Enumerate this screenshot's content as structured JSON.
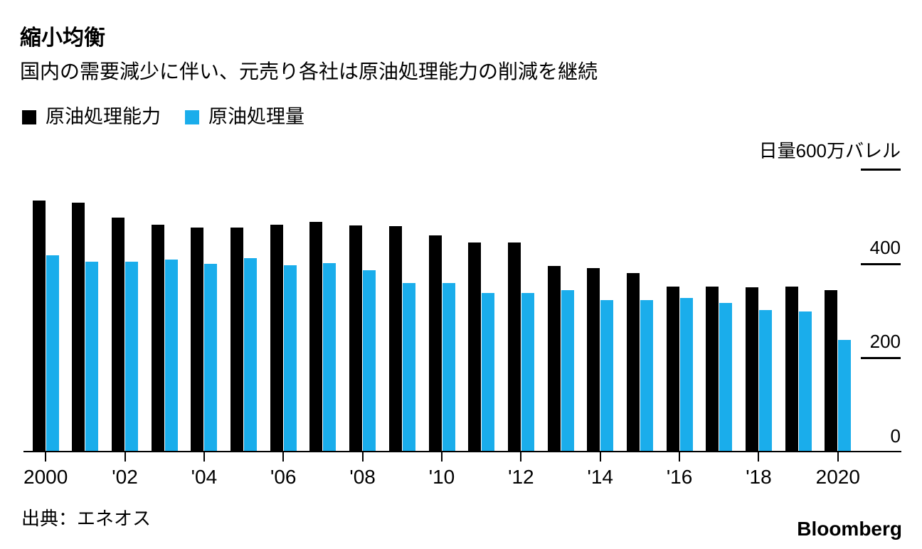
{
  "header": {
    "title": "縮小均衡",
    "subtitle": "国内の需要減少に伴い、元売り各社は原油処理能力の削減を継続"
  },
  "legend": [
    {
      "label": "原油処理能力",
      "color": "#000000"
    },
    {
      "label": "原油処理量",
      "color": "#1AADEB"
    }
  ],
  "footer": {
    "source": "出典：エネオス",
    "brand": "Bloomberg"
  },
  "chart_data": {
    "type": "bar",
    "title": "縮小均衡",
    "subtitle": "国内の需要減少に伴い、元売り各社は原油処理能力の削減を継続",
    "unit_label": "日量600万バレル",
    "unit_note": "values in 万バレル/日 (10,000 barrels per day)",
    "categories": [
      2000,
      2001,
      2002,
      2003,
      2004,
      2005,
      2006,
      2007,
      2008,
      2009,
      2010,
      2011,
      2012,
      2013,
      2014,
      2015,
      2016,
      2017,
      2018,
      2019,
      2020
    ],
    "series": [
      {
        "name": "原油処理能力",
        "color": "#000000",
        "values": [
          533,
          529,
          498,
          482,
          476,
          476,
          482,
          488,
          481,
          479,
          460,
          445,
          445,
          395,
          391,
          380,
          351,
          352,
          350,
          351,
          343
        ]
      },
      {
        "name": "原油処理量",
        "color": "#1AADEB",
        "values": [
          417,
          404,
          404,
          409,
          400,
          412,
          397,
          401,
          386,
          359,
          359,
          337,
          337,
          343,
          323,
          323,
          327,
          317,
          302,
          298,
          238
        ]
      }
    ],
    "x_tick_labels": [
      "2000",
      "'02",
      "'04",
      "'06",
      "'08",
      "'10",
      "'12",
      "'14",
      "'16",
      "'18",
      "2020"
    ],
    "y_axis": {
      "side": "right",
      "max": 600,
      "ticks": [
        600,
        400,
        200,
        0
      ],
      "top_label": "日量600万バレル"
    },
    "grid": false,
    "legend_position": "top-left",
    "source": "出典：エネオス",
    "brand": "Bloomberg"
  }
}
